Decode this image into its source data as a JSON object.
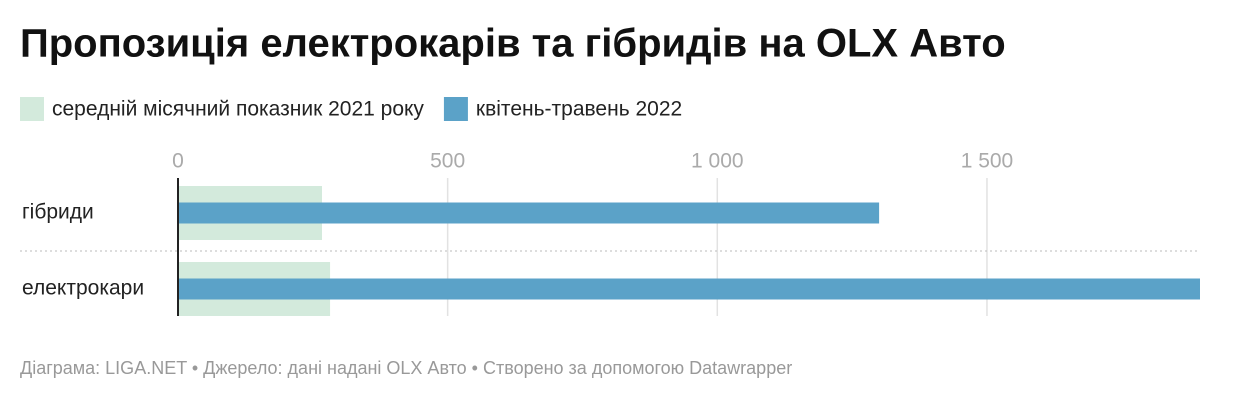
{
  "chart_data": {
    "type": "bar",
    "orientation": "horizontal",
    "title": "Пропозиція електрокарів та гібридів на OLX Авто",
    "categories": [
      "гібриди",
      "електрокари"
    ],
    "series": [
      {
        "name": "середній місячний показник 2021 року",
        "color": "#d3eadc",
        "values": [
          267,
          282
        ]
      },
      {
        "name": "квітень-травень 2022",
        "color": "#5ba2c8",
        "values": [
          1300,
          1895
        ]
      }
    ],
    "xlim": [
      0,
      1895
    ],
    "xticks": [
      0,
      500,
      {
        "value": 1000,
        "label": "1 000"
      },
      {
        "value": 1500,
        "label": "1 500"
      }
    ],
    "grid": true,
    "legend": "top-left",
    "source": "Діаграма: LIGA.NET • Джерело: дані надані OLX Авто • Створено за допомогою Datawrapper"
  }
}
